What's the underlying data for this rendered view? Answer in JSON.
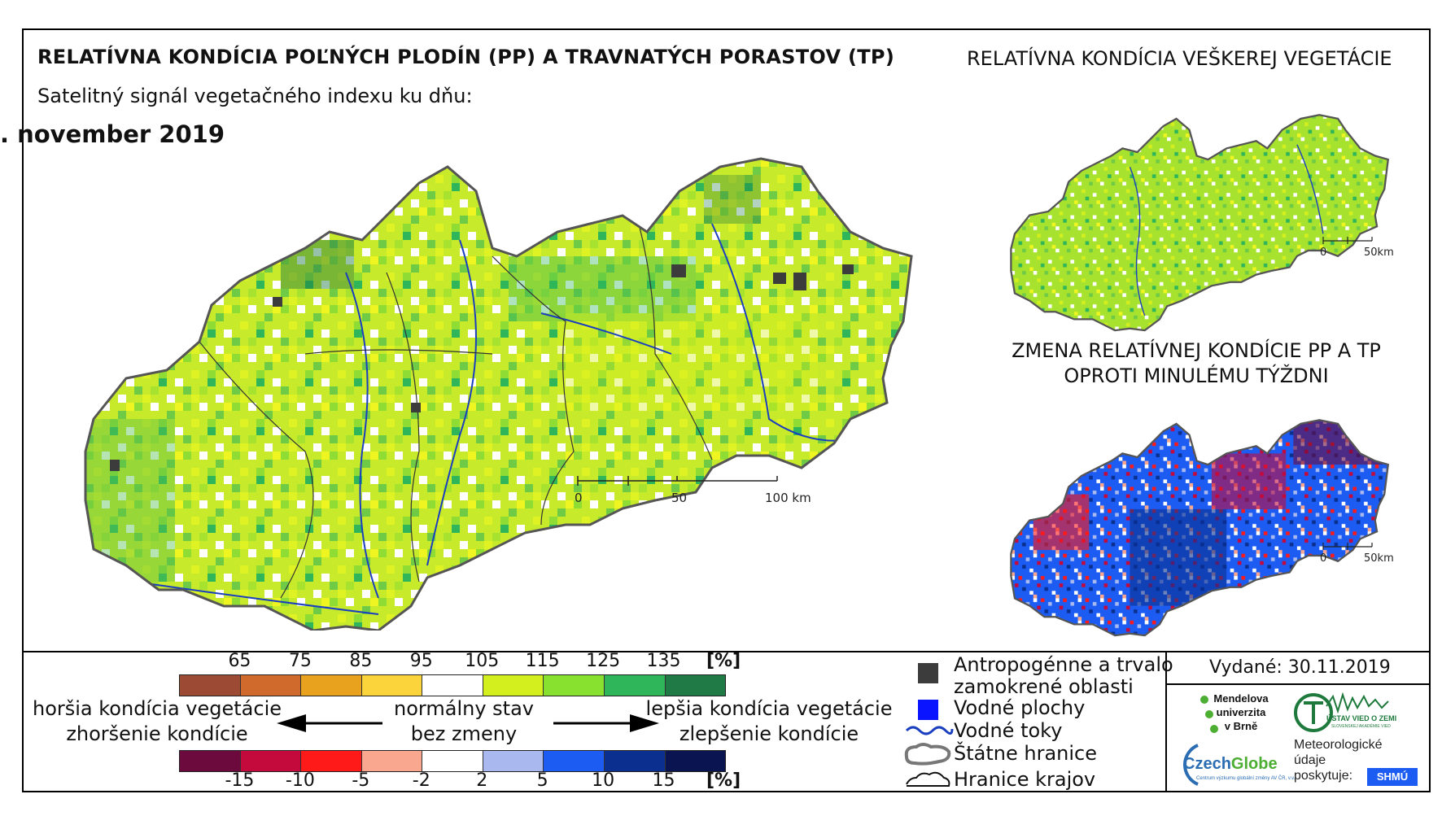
{
  "header": {
    "title": "RELATÍVNA KONDÍCIA POĽNÝCH PLODÍN (PP) A TRAVNATÝCH PORASTOV (TP)",
    "subtitle": "Satelitný signál vegetačného indexu ku dňu:",
    "date": ". november 2019"
  },
  "right_panel": {
    "title": "RELATÍVNA KONDÍCIA VEŠKEREJ VEGETÁCIE",
    "change_title_line1": "ZMENA RELATÍVNEJ KONDÍCIE PP A TP",
    "change_title_line2": "OPROTI MINULÉMU TÝŽDNI"
  },
  "main_map": {
    "scale": {
      "labels": [
        "0",
        "50",
        "100 km"
      ]
    }
  },
  "small_maps": {
    "scale": {
      "labels": [
        "0",
        "50km"
      ]
    }
  },
  "legend": {
    "condition_ticks": [
      "65",
      "75",
      "85",
      "95",
      "105",
      "115",
      "125",
      "135"
    ],
    "condition_unit": "[%]",
    "condition_colors": [
      "#9c4a34",
      "#cf6a2c",
      "#e8a21e",
      "#fad43a",
      "#ffffff",
      "#d4ef1e",
      "#88e12e",
      "#2fb65a",
      "#1f7a45"
    ],
    "change_ticks": [
      "-15",
      "-10",
      "-5",
      "-2",
      "2",
      "5",
      "10",
      "15"
    ],
    "change_unit": "[%]",
    "change_colors": [
      "#6c0a3e",
      "#c40a3c",
      "#ff1a1a",
      "#f9a78e",
      "#ffffff",
      "#a9b9ef",
      "#1c5cf2",
      "#0a2f8f",
      "#0a1450"
    ],
    "worse_line1": "horšia kondícia vegetácie",
    "worse_line2": "zhoršenie kondície",
    "normal_line1": "normálny stav",
    "normal_line2": "bez zmeny",
    "better_line1": "lepšia kondícia vegetácie",
    "better_line2": "zlepšenie kondície",
    "items": [
      {
        "label": "Antropogénne a trvalo",
        "label2": "zamokrené oblasti"
      },
      {
        "label": "Vodné plochy"
      },
      {
        "label": "Vodné toky"
      },
      {
        "label": "Štátne hranice"
      },
      {
        "label": "Hranice krajov"
      }
    ],
    "issued": "Vydané: 30.11.2019",
    "logos": {
      "mendel_line1": "Mendelova",
      "mendel_line2": "univerzita",
      "mendel_line3": "v Brně",
      "czechglobe_a": "Czech",
      "czechglobe_b": "Globe",
      "czechglobe_small": "Centrum výzkumu globální změny AV ČR, v.v.i.",
      "uvoz": "ÚSTAV VIED O ZEMI",
      "uvoz_small": "SLOVENSKEJ AKADÉMIE VIED",
      "meteo_line1": "Meteorologické",
      "meteo_line2": "údaje",
      "meteo_line3": "poskytuje:",
      "shmu": "SHMÚ"
    }
  }
}
